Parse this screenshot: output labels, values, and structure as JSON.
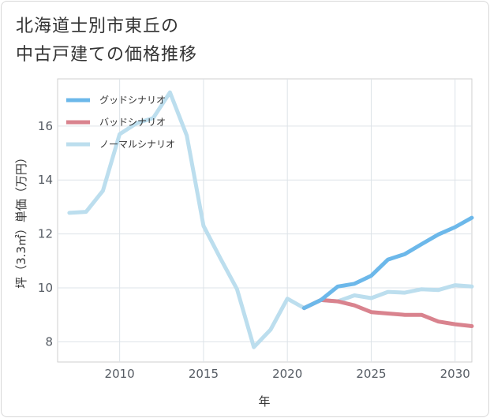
{
  "title_lines": [
    "北海道士別市東丘の",
    "中古戸建ての価格推移"
  ],
  "chart_data": {
    "type": "line",
    "title": "北海道士別市東丘の中古戸建ての価格推移",
    "xlabel": "年",
    "ylabel": "坪（3.3㎡）単価（万円）",
    "xlim": [
      2006.3,
      2031
    ],
    "ylim": [
      7.25,
      17.75
    ],
    "xticks": [
      2010,
      2015,
      2020,
      2025,
      2030
    ],
    "yticks": [
      8,
      10,
      12,
      14,
      16
    ],
    "grid": true,
    "legend_position": "top-left",
    "series": [
      {
        "name": "グッドシナリオ",
        "color": "#6cb8ea",
        "x": [
          2021,
          2022,
          2023,
          2024,
          2025,
          2026,
          2027,
          2028,
          2029,
          2030,
          2031
        ],
        "y": [
          9.25,
          9.55,
          10.05,
          10.15,
          10.45,
          11.05,
          11.25,
          11.62,
          11.98,
          12.25,
          12.6
        ]
      },
      {
        "name": "バッドシナリオ",
        "color": "#d9838e",
        "x": [
          2021,
          2022,
          2023,
          2024,
          2025,
          2026,
          2027,
          2028,
          2029,
          2030,
          2031
        ],
        "y": [
          9.25,
          9.55,
          9.5,
          9.35,
          9.1,
          9.05,
          9.0,
          9.0,
          8.75,
          8.65,
          8.58
        ]
      },
      {
        "name": "ノーマルシナリオ",
        "color": "#bcdeee",
        "x": [
          2007,
          2008,
          2009,
          2010,
          2011,
          2012,
          2013,
          2014,
          2015,
          2016,
          2017,
          2018,
          2019,
          2020,
          2021,
          2022,
          2023,
          2024,
          2025,
          2026,
          2027,
          2028,
          2029,
          2030,
          2031
        ],
        "y": [
          12.78,
          12.82,
          13.6,
          15.7,
          16.1,
          16.3,
          17.25,
          15.65,
          12.3,
          11.1,
          9.95,
          7.8,
          8.45,
          9.6,
          9.25,
          9.55,
          9.5,
          9.72,
          9.62,
          9.85,
          9.82,
          9.95,
          9.92,
          10.1,
          10.05
        ]
      }
    ]
  }
}
